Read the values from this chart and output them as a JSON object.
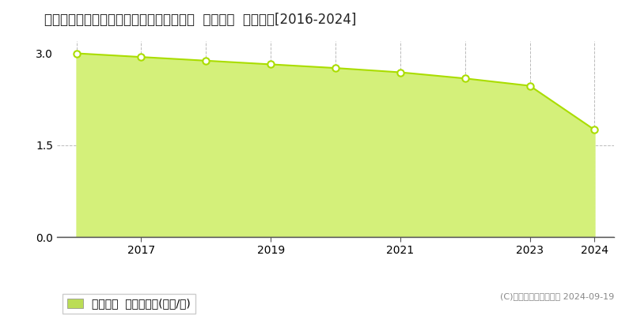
{
  "title": "北海道常呂郡佐呂間町字永代町８８番１内  基準地価  地価推移[2016-2024]",
  "years": [
    2016,
    2017,
    2018,
    2019,
    2020,
    2021,
    2022,
    2023,
    2024
  ],
  "values": [
    3.0,
    2.94,
    2.88,
    2.82,
    2.76,
    2.69,
    2.59,
    2.47,
    1.75
  ],
  "ylim": [
    0,
    3.2
  ],
  "yticks": [
    0,
    1.5,
    3
  ],
  "line_color": "#aadd00",
  "fill_color": "#d4f07a",
  "marker_color": "#ffffff",
  "marker_edge_color": "#aadd00",
  "grid_color": "#aaaaaa",
  "background_color": "#ffffff",
  "legend_label": "基準地価  平均坪単価(万円/坪)",
  "legend_color": "#bbdd55",
  "copyright_text": "(C)土地価格ドットコム 2024-09-19",
  "title_fontsize": 12,
  "axis_fontsize": 10,
  "legend_fontsize": 10,
  "copyright_fontsize": 8
}
